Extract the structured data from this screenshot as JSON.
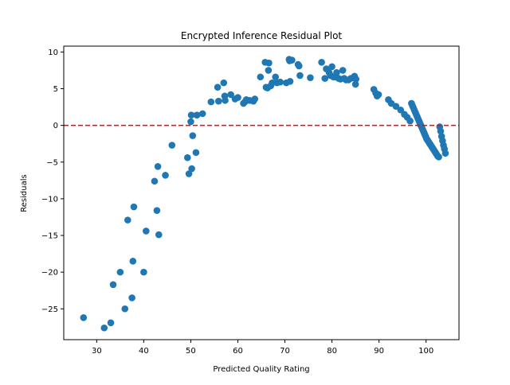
{
  "chart_data": {
    "type": "scatter",
    "title": "Encrypted Inference Residual Plot",
    "xlabel": "Predicted Quality Rating",
    "ylabel": "Residuals",
    "xlim": [
      23,
      107
    ],
    "ylim": [
      -29.2,
      10.8
    ],
    "xticks": [
      30,
      40,
      50,
      60,
      70,
      80,
      90,
      100
    ],
    "yticks": [
      10,
      5,
      0,
      -5,
      -10,
      -15,
      -20,
      -25
    ],
    "ytick_labels": [
      "10",
      "5",
      "0",
      "−5",
      "−10",
      "−15",
      "−20",
      "−25"
    ],
    "grid": false,
    "reference_line": {
      "y": 0,
      "style": "dashed",
      "color": "#ff0000"
    },
    "marker_color": "#1f77b4",
    "x": [
      27.2,
      31.6,
      33.0,
      33.5,
      35.0,
      36.0,
      36.6,
      37.5,
      37.7,
      37.9,
      40.0,
      40.5,
      42.3,
      42.8,
      43.0,
      43.2,
      44.6,
      46.0,
      49.3,
      49.6,
      50.0,
      50.1,
      50.2,
      50.4,
      51.1,
      51.3,
      52.5,
      54.3,
      55.7,
      55.9,
      57.0,
      57.2,
      57.3,
      58.5,
      59.4,
      60.0,
      61.2,
      61.5,
      61.8,
      62.5,
      63.3,
      63.6,
      64.8,
      65.8,
      66.0,
      66.3,
      66.5,
      66.6,
      67.0,
      67.3,
      68.0,
      68.3,
      69.0,
      70.3,
      70.9,
      71.0,
      71.1,
      71.5,
      72.8,
      73.0,
      73.2,
      75.4,
      77.8,
      78.5,
      78.8,
      79.4,
      79.7,
      80.0,
      80.3,
      80.6,
      81.0,
      81.4,
      81.8,
      82.3,
      82.6,
      83.0,
      83.5,
      84.0,
      84.5,
      84.8,
      85.0,
      85.1,
      88.9,
      89.3,
      89.6,
      89.9,
      92.0,
      92.6,
      93.6,
      94.6,
      95.4,
      96.0,
      96.6,
      96.9,
      97.1,
      97.3,
      97.5,
      97.7,
      97.9,
      98.1,
      98.3,
      98.5,
      98.7,
      98.9,
      99.1,
      99.3,
      99.5,
      99.7,
      99.9,
      100.1,
      100.3,
      100.5,
      100.7,
      100.9,
      101.1,
      101.3,
      101.5,
      101.7,
      101.9,
      102.1,
      102.3,
      102.5,
      102.7,
      102.9,
      103.1,
      103.3,
      103.5,
      103.7,
      103.9,
      104.1
    ],
    "y": [
      -26.2,
      -27.6,
      -26.9,
      -21.7,
      -20.0,
      -25.0,
      -12.9,
      -23.5,
      -18.5,
      -11.1,
      -20.0,
      -14.4,
      -7.6,
      -11.6,
      -5.6,
      -14.9,
      -6.8,
      -2.7,
      -4.4,
      -6.6,
      0.5,
      1.4,
      -5.9,
      -1.4,
      -3.7,
      1.4,
      1.6,
      3.2,
      5.2,
      3.3,
      5.8,
      4.0,
      3.4,
      4.2,
      3.6,
      3.8,
      3.0,
      3.2,
      3.5,
      3.4,
      3.3,
      3.6,
      6.6,
      8.6,
      5.2,
      5.1,
      7.5,
      8.5,
      5.4,
      5.8,
      6.6,
      5.8,
      5.9,
      5.8,
      9.0,
      8.8,
      6.0,
      8.9,
      8.3,
      8.1,
      6.8,
      6.5,
      8.6,
      6.4,
      7.7,
      7.2,
      6.8,
      8.0,
      6.6,
      6.6,
      7.2,
      6.4,
      6.3,
      7.5,
      6.4,
      6.2,
      6.2,
      6.4,
      6.5,
      6.7,
      5.6,
      6.3,
      4.9,
      4.4,
      4.0,
      4.2,
      3.5,
      3.0,
      2.6,
      2.1,
      1.5,
      1.1,
      0.6,
      3.0,
      2.7,
      2.4,
      2.1,
      1.8,
      1.5,
      1.2,
      0.9,
      0.6,
      0.3,
      0.0,
      -0.3,
      -0.6,
      -0.9,
      -1.2,
      -1.5,
      -1.8,
      -2.0,
      -2.2,
      -2.4,
      -2.6,
      -2.8,
      -3.0,
      -3.2,
      -3.4,
      -3.6,
      -3.8,
      -4.0,
      -4.2,
      -4.3,
      -0.2,
      -0.8,
      -1.5,
      -2.1,
      -2.7,
      -3.2,
      -3.8
    ]
  }
}
